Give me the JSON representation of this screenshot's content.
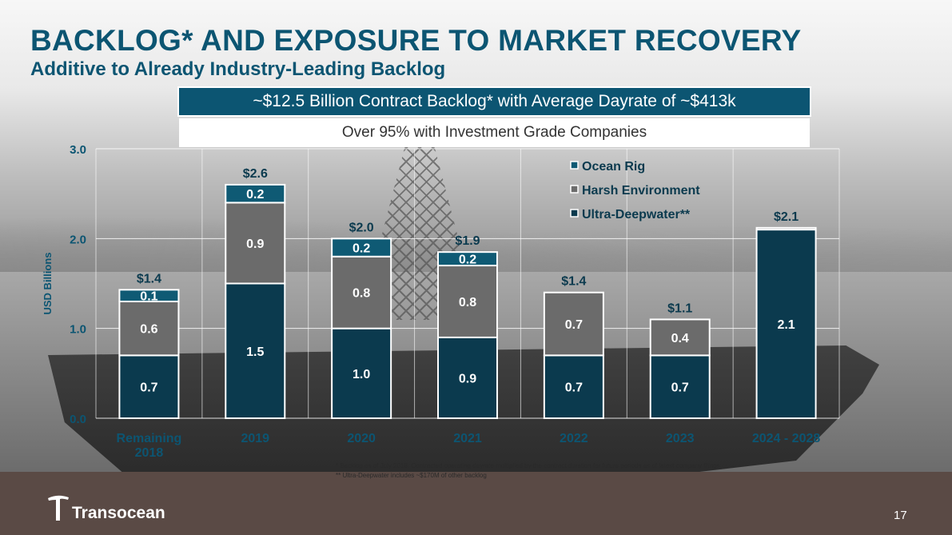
{
  "title": "BACKLOG* AND EXPOSURE TO MARKET RECOVERY",
  "subtitle": "Additive to Already Industry-Leading Backlog",
  "backlog_banner": "~$12.5 Billion Contract Backlog* with Average Dayrate of ~$413k",
  "ig_banner": "Over 95% with Investment Grade Companies",
  "footnotes": [
    "*  Backlog as of July 2018. Contracted operating dayrate multiplied by the contract duration for future periods as of latest company filings",
    "** Ultra-Deepwater includes ~$170M of other backlog"
  ],
  "logo_text": "Transocean",
  "page_number": "17",
  "colors": {
    "brand_teal": "#0c5572",
    "ultra_deepwater": "#0b3a4e",
    "harsh_environment": "#6b6b6b",
    "ocean_rig": "#0f5a74"
  },
  "chart_data": {
    "type": "bar",
    "stacked": true,
    "categories": [
      "Remaining\n2018",
      "2019",
      "2020",
      "2021",
      "2022",
      "2023",
      "2024 - 2028"
    ],
    "series": [
      {
        "name": "Ultra-Deepwater**",
        "color": "#0b3a4e",
        "values": [
          0.7,
          1.5,
          1.0,
          0.9,
          0.7,
          0.7,
          2.1
        ],
        "labels": [
          "0.7",
          "1.5",
          "1.0",
          "0.9",
          "0.7",
          "0.7",
          "2.1"
        ]
      },
      {
        "name": "Harsh Environment",
        "color": "#6b6b6b",
        "values": [
          0.6,
          0.9,
          0.8,
          0.8,
          0.7,
          0.4,
          0.02
        ],
        "labels": [
          "0.6",
          "0.9",
          "0.8",
          "0.8",
          "0.7",
          "0.4",
          ""
        ]
      },
      {
        "name": "Ocean Rig",
        "color": "#0f5a74",
        "values": [
          0.13,
          0.2,
          0.2,
          0.15,
          0,
          0,
          0
        ],
        "labels": [
          "0.1",
          "0.2",
          "0.2",
          "0.2",
          "",
          "",
          ""
        ]
      }
    ],
    "totals": [
      "$1.4",
      "$2.6",
      "$2.0",
      "$1.9",
      "$1.4",
      "$1.1",
      "$2.1"
    ],
    "legend_order": [
      "Ocean Rig",
      "Harsh Environment",
      "Ultra-Deepwater**"
    ],
    "legend_position": "top-right",
    "ylabel": "USD Billions",
    "ylim": [
      0,
      3
    ],
    "yticks": [
      "0.0",
      "1.0",
      "2.0",
      "3.0"
    ],
    "ytick_values": [
      0,
      1,
      2,
      3
    ],
    "grid": true
  }
}
